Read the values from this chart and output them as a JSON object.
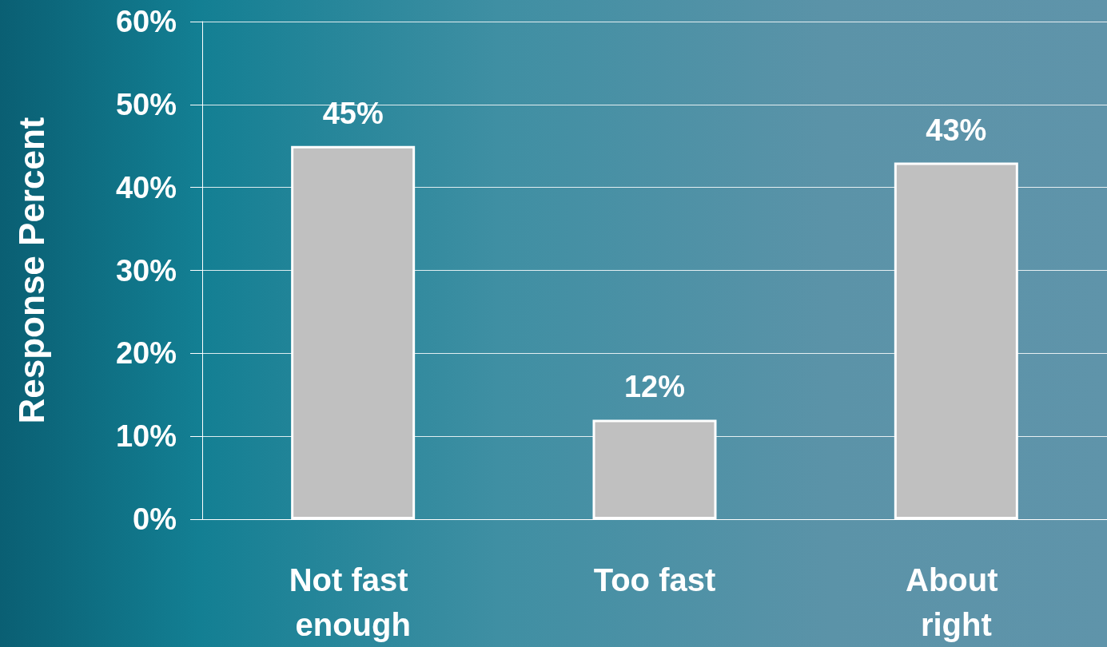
{
  "chart_data": {
    "type": "bar",
    "ylabel": "Response Percent",
    "categories": [
      "Not fast enough",
      "Too fast",
      "About right"
    ],
    "values": [
      45,
      12,
      43
    ],
    "value_labels": [
      "45%",
      "12%",
      "43%"
    ],
    "color": "#c0c0c0",
    "ylim": [
      0,
      60
    ],
    "yticks": [
      {
        "value": 0,
        "label": "0%"
      },
      {
        "value": 10,
        "label": "10%"
      },
      {
        "value": 20,
        "label": "20%"
      },
      {
        "value": 30,
        "label": "30%"
      },
      {
        "value": 40,
        "label": "40%"
      },
      {
        "value": 50,
        "label": "50%"
      },
      {
        "value": 60,
        "label": "60%"
      }
    ],
    "grid": "y"
  }
}
